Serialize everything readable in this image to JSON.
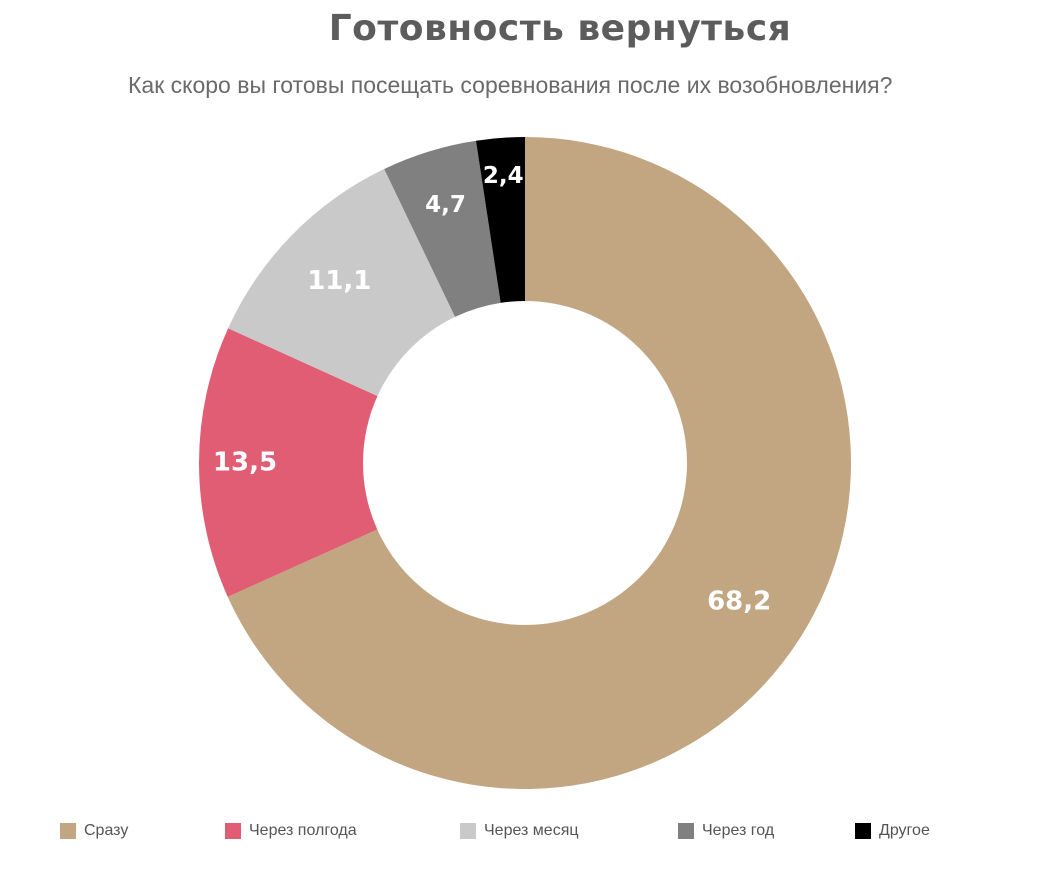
{
  "chart_data": {
    "type": "pie",
    "donut": true,
    "title": "Готовность вернуться",
    "subtitle": "Как скоро вы готовы посещать соревнования после их возобновления?",
    "slices": [
      {
        "label": "Сразу",
        "value": 68.2,
        "value_label": "68,2",
        "color": "#c2a682"
      },
      {
        "label": "Через полгода",
        "value": 13.5,
        "value_label": "13,5",
        "color": "#e05d74"
      },
      {
        "label": "Через месяц",
        "value": 11.1,
        "value_label": "11,1",
        "color": "#c9c9c9"
      },
      {
        "label": "Через год",
        "value": 4.7,
        "value_label": "4,7",
        "color": "#808080"
      },
      {
        "label": "Другое",
        "value": 2.4,
        "value_label": "2,4",
        "color": "#000000"
      }
    ],
    "legend_order": [
      "Сразу",
      "Через полгода",
      "Через месяц",
      "Через год",
      "Другое"
    ],
    "legend_position": "bottom"
  }
}
